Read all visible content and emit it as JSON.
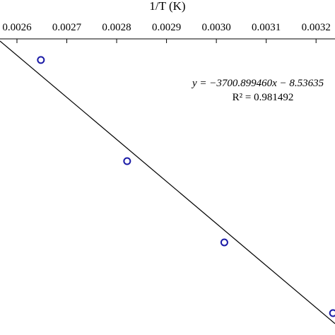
{
  "chart_data": {
    "type": "scatter",
    "xlabel": "1/T (K)",
    "x": [
      0.002648,
      0.002821,
      0.003016,
      0.003234
    ],
    "values": [
      -18.2,
      -19.09,
      -19.805,
      -20.427
    ],
    "color": "#1a1aa6",
    "fit": {
      "slope": -3700.89946,
      "intercept": -8.53635,
      "color": "#000000"
    },
    "xlim": [
      0.002566,
      0.003238
    ],
    "ylim": [
      -20.62,
      -18.014
    ],
    "xticks": [
      0.0026,
      0.0027,
      0.0028,
      0.0029,
      {
        "value": 0.003,
        "label": "0.0030"
      },
      0.0031,
      0.0032
    ],
    "annotations": [
      "y = −3700.899460x − 8.53635",
      "R² = 0.981492"
    ]
  }
}
